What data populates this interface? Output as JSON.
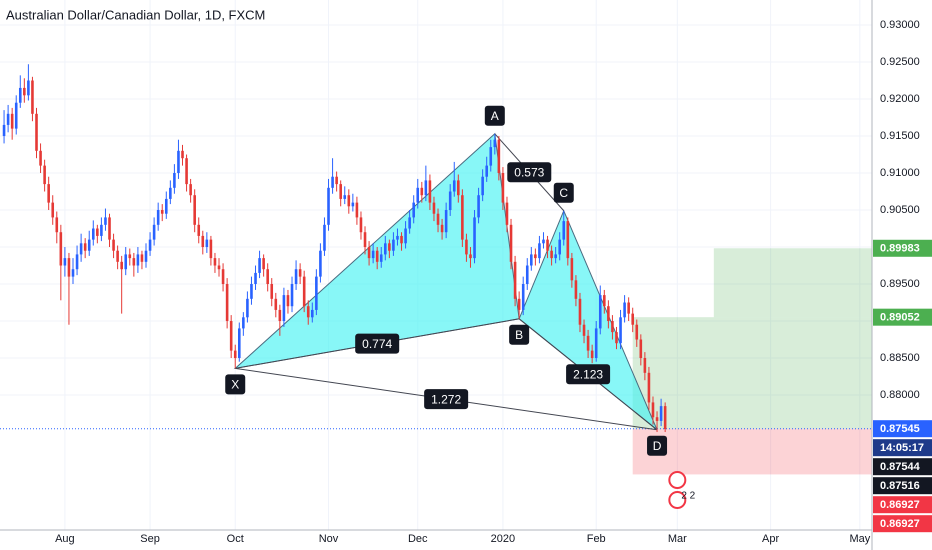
{
  "chart_data": {
    "type": "candlestick",
    "title": "Australian Dollar/Canadian Dollar, 1D, FXCM",
    "up_color": "#2962ff",
    "down_color": "#e53935",
    "grid": true,
    "xlim": [
      -1,
      214
    ],
    "ylim": [
      0.86176,
      0.93338
    ],
    "xticks": [
      {
        "value": 15,
        "label": "Aug"
      },
      {
        "value": 36,
        "label": "Sep"
      },
      {
        "value": 57,
        "label": "Oct"
      },
      {
        "value": 80,
        "label": "Nov"
      },
      {
        "value": 102,
        "label": "Dec"
      },
      {
        "value": 123,
        "label": "2020"
      },
      {
        "value": 146,
        "label": "Feb"
      },
      {
        "value": 166,
        "label": "Mar"
      },
      {
        "value": 189,
        "label": "Apr"
      },
      {
        "value": 211,
        "label": "May"
      }
    ],
    "yticks": [
      {
        "value": 0.93,
        "label": "0.93000"
      },
      {
        "value": 0.925,
        "label": "0.92500"
      },
      {
        "value": 0.92,
        "label": "0.92000"
      },
      {
        "value": 0.915,
        "label": "0.91500"
      },
      {
        "value": 0.91,
        "label": "0.91000"
      },
      {
        "value": 0.905,
        "label": "0.90500"
      },
      {
        "value": 0.9,
        "label": "0.90000"
      },
      {
        "value": 0.895,
        "label": "0.89500"
      },
      {
        "value": 0.89,
        "label": "0.89000"
      },
      {
        "value": 0.885,
        "label": "0.88500"
      },
      {
        "value": 0.88,
        "label": "0.88000"
      }
    ],
    "ohlc": [
      [
        0.915,
        0.9185,
        0.914,
        0.9165
      ],
      [
        0.9165,
        0.9192,
        0.9155,
        0.918
      ],
      [
        0.918,
        0.9188,
        0.9145,
        0.916
      ],
      [
        0.916,
        0.9205,
        0.9152,
        0.9195
      ],
      [
        0.9195,
        0.9232,
        0.9188,
        0.9215
      ],
      [
        0.9215,
        0.9228,
        0.9195,
        0.9205
      ],
      [
        0.9205,
        0.9247,
        0.9198,
        0.9225
      ],
      [
        0.9225,
        0.923,
        0.917,
        0.918
      ],
      [
        0.918,
        0.9188,
        0.912,
        0.913
      ],
      [
        0.913,
        0.914,
        0.91,
        0.911
      ],
      [
        0.911,
        0.9118,
        0.9075,
        0.9085
      ],
      [
        0.9085,
        0.9095,
        0.905,
        0.906
      ],
      [
        0.906,
        0.907,
        0.903,
        0.904
      ],
      [
        0.904,
        0.9048,
        0.9005,
        0.902
      ],
      [
        0.902,
        0.903,
        0.8928,
        0.8975
      ],
      [
        0.8975,
        0.9,
        0.896,
        0.8985
      ],
      [
        0.8985,
        0.8992,
        0.8895,
        0.896
      ],
      [
        0.896,
        0.8985,
        0.895,
        0.897
      ],
      [
        0.897,
        0.9002,
        0.8962,
        0.899
      ],
      [
        0.899,
        0.9018,
        0.898,
        0.9005
      ],
      [
        0.9005,
        0.9012,
        0.8985,
        0.8995
      ],
      [
        0.8995,
        0.9022,
        0.8988,
        0.901
      ],
      [
        0.901,
        0.9036,
        0.9002,
        0.9025
      ],
      [
        0.9025,
        0.903,
        0.9005,
        0.9015
      ],
      [
        0.9015,
        0.904,
        0.9008,
        0.903
      ],
      [
        0.903,
        0.9052,
        0.9022,
        0.904
      ],
      [
        0.904,
        0.9045,
        0.9,
        0.901
      ],
      [
        0.901,
        0.9018,
        0.8985,
        0.8995
      ],
      [
        0.8995,
        0.9002,
        0.897,
        0.898
      ],
      [
        0.898,
        0.8988,
        0.891,
        0.897
      ],
      [
        0.897,
        0.9,
        0.8962,
        0.899
      ],
      [
        0.899,
        0.8998,
        0.8975,
        0.8985
      ],
      [
        0.8985,
        0.8992,
        0.896,
        0.8975
      ],
      [
        0.8975,
        0.9,
        0.8965,
        0.899
      ],
      [
        0.899,
        0.8995,
        0.897,
        0.898
      ],
      [
        0.898,
        0.9005,
        0.8972,
        0.8995
      ],
      [
        0.8995,
        0.902,
        0.8988,
        0.901
      ],
      [
        0.901,
        0.904,
        0.9002,
        0.903
      ],
      [
        0.903,
        0.906,
        0.9022,
        0.905
      ],
      [
        0.905,
        0.9058,
        0.9035,
        0.9045
      ],
      [
        0.9045,
        0.9075,
        0.9038,
        0.9065
      ],
      [
        0.9065,
        0.909,
        0.9058,
        0.908
      ],
      [
        0.908,
        0.9112,
        0.9072,
        0.91
      ],
      [
        0.91,
        0.9145,
        0.9092,
        0.913
      ],
      [
        0.913,
        0.9138,
        0.911,
        0.912
      ],
      [
        0.912,
        0.9125,
        0.9075,
        0.9085
      ],
      [
        0.9085,
        0.9092,
        0.906,
        0.907
      ],
      [
        0.907,
        0.9078,
        0.902,
        0.903
      ],
      [
        0.903,
        0.904,
        0.9005,
        0.9015
      ],
      [
        0.9015,
        0.9022,
        0.899,
        0.9
      ],
      [
        0.9,
        0.902,
        0.8992,
        0.901
      ],
      [
        0.901,
        0.9015,
        0.8975,
        0.8985
      ],
      [
        0.8985,
        0.8992,
        0.8965,
        0.8975
      ],
      [
        0.8975,
        0.8985,
        0.896,
        0.897
      ],
      [
        0.897,
        0.8978,
        0.894,
        0.895
      ],
      [
        0.895,
        0.8958,
        0.889,
        0.89
      ],
      [
        0.89,
        0.8908,
        0.885,
        0.886
      ],
      [
        0.886,
        0.8868,
        0.8836,
        0.885
      ],
      [
        0.885,
        0.8898,
        0.8845,
        0.889
      ],
      [
        0.889,
        0.8912,
        0.888,
        0.8905
      ],
      [
        0.8905,
        0.894,
        0.8898,
        0.893
      ],
      [
        0.893,
        0.896,
        0.8922,
        0.895
      ],
      [
        0.895,
        0.8975,
        0.8942,
        0.8965
      ],
      [
        0.8965,
        0.8995,
        0.8958,
        0.8985
      ],
      [
        0.8985,
        0.899,
        0.896,
        0.897
      ],
      [
        0.897,
        0.8978,
        0.894,
        0.895
      ],
      [
        0.895,
        0.8958,
        0.892,
        0.893
      ],
      [
        0.893,
        0.8938,
        0.8905,
        0.8915
      ],
      [
        0.8915,
        0.8922,
        0.888,
        0.89
      ],
      [
        0.89,
        0.8945,
        0.8892,
        0.8935
      ],
      [
        0.8935,
        0.8942,
        0.891,
        0.892
      ],
      [
        0.892,
        0.896,
        0.8912,
        0.895
      ],
      [
        0.895,
        0.8982,
        0.8942,
        0.897
      ],
      [
        0.897,
        0.8978,
        0.895,
        0.896
      ],
      [
        0.896,
        0.8968,
        0.8912,
        0.892
      ],
      [
        0.892,
        0.8928,
        0.8895,
        0.8905
      ],
      [
        0.8905,
        0.8925,
        0.8898,
        0.8915
      ],
      [
        0.8915,
        0.897,
        0.8908,
        0.896
      ],
      [
        0.896,
        0.9005,
        0.8952,
        0.8995
      ],
      [
        0.8995,
        0.904,
        0.8988,
        0.903
      ],
      [
        0.903,
        0.9092,
        0.9022,
        0.908
      ],
      [
        0.908,
        0.912,
        0.9072,
        0.9095
      ],
      [
        0.9095,
        0.9102,
        0.9075,
        0.9085
      ],
      [
        0.9085,
        0.909,
        0.9055,
        0.9065
      ],
      [
        0.9065,
        0.9082,
        0.9058,
        0.907
      ],
      [
        0.907,
        0.9078,
        0.9045,
        0.9055
      ],
      [
        0.9055,
        0.9072,
        0.9048,
        0.906
      ],
      [
        0.906,
        0.9068,
        0.903,
        0.904
      ],
      [
        0.904,
        0.9048,
        0.901,
        0.902
      ],
      [
        0.902,
        0.9028,
        0.899,
        0.9
      ],
      [
        0.9,
        0.9008,
        0.8975,
        0.8985
      ],
      [
        0.8985,
        0.9005,
        0.8978,
        0.8995
      ],
      [
        0.8995,
        0.9,
        0.897,
        0.898
      ],
      [
        0.898,
        0.9,
        0.8972,
        0.899
      ],
      [
        0.899,
        0.9015,
        0.8982,
        0.9005
      ],
      [
        0.9005,
        0.901,
        0.8985,
        0.8995
      ],
      [
        0.8995,
        0.902,
        0.8988,
        0.901
      ],
      [
        0.901,
        0.9025,
        0.9002,
        0.9015
      ],
      [
        0.9015,
        0.902,
        0.8995,
        0.9005
      ],
      [
        0.9005,
        0.9035,
        0.8998,
        0.9025
      ],
      [
        0.9025,
        0.905,
        0.9018,
        0.904
      ],
      [
        0.904,
        0.907,
        0.9032,
        0.906
      ],
      [
        0.906,
        0.9092,
        0.9052,
        0.908
      ],
      [
        0.908,
        0.9088,
        0.906,
        0.907
      ],
      [
        0.907,
        0.911,
        0.9062,
        0.909
      ],
      [
        0.909,
        0.9098,
        0.905,
        0.906
      ],
      [
        0.906,
        0.9068,
        0.9035,
        0.9045
      ],
      [
        0.9045,
        0.9052,
        0.902,
        0.903
      ],
      [
        0.903,
        0.9038,
        0.901,
        0.902
      ],
      [
        0.902,
        0.906,
        0.9012,
        0.905
      ],
      [
        0.905,
        0.9085,
        0.9042,
        0.9075
      ],
      [
        0.9075,
        0.9115,
        0.9068,
        0.909
      ],
      [
        0.909,
        0.9098,
        0.906,
        0.907
      ],
      [
        0.907,
        0.9078,
        0.9,
        0.901
      ],
      [
        0.901,
        0.9018,
        0.898,
        0.899
      ],
      [
        0.899,
        0.9,
        0.8972,
        0.8985
      ],
      [
        0.8985,
        0.905,
        0.8978,
        0.904
      ],
      [
        0.904,
        0.908,
        0.9032,
        0.907
      ],
      [
        0.907,
        0.9105,
        0.9062,
        0.9095
      ],
      [
        0.9095,
        0.9122,
        0.9088,
        0.911
      ],
      [
        0.911,
        0.9145,
        0.9102,
        0.9135
      ],
      [
        0.9135,
        0.9153,
        0.9125,
        0.9145
      ],
      [
        0.9145,
        0.915,
        0.909,
        0.91
      ],
      [
        0.91,
        0.9108,
        0.905,
        0.906
      ],
      [
        0.906,
        0.9068,
        0.902,
        0.903
      ],
      [
        0.903,
        0.9038,
        0.897,
        0.898
      ],
      [
        0.898,
        0.8988,
        0.892,
        0.893
      ],
      [
        0.893,
        0.894,
        0.8903,
        0.8915
      ],
      [
        0.8915,
        0.896,
        0.8908,
        0.895
      ],
      [
        0.895,
        0.8985,
        0.8942,
        0.8975
      ],
      [
        0.8975,
        0.9,
        0.8968,
        0.899
      ],
      [
        0.899,
        0.8998,
        0.8975,
        0.8985
      ],
      [
        0.8985,
        0.9015,
        0.8978,
        0.9005
      ],
      [
        0.9005,
        0.902,
        0.8998,
        0.901
      ],
      [
        0.901,
        0.9015,
        0.8985,
        0.8995
      ],
      [
        0.8995,
        0.9002,
        0.8975,
        0.8985
      ],
      [
        0.8985,
        0.9,
        0.8978,
        0.899
      ],
      [
        0.899,
        0.902,
        0.8982,
        0.901
      ],
      [
        0.901,
        0.9049,
        0.9002,
        0.9035
      ],
      [
        0.9035,
        0.904,
        0.8975,
        0.8985
      ],
      [
        0.8985,
        0.8992,
        0.8945,
        0.8955
      ],
      [
        0.8955,
        0.8962,
        0.892,
        0.893
      ],
      [
        0.893,
        0.8938,
        0.8885,
        0.8895
      ],
      [
        0.8895,
        0.8902,
        0.887,
        0.888
      ],
      [
        0.888,
        0.8888,
        0.885,
        0.886
      ],
      [
        0.886,
        0.8868,
        0.8843,
        0.885
      ],
      [
        0.885,
        0.89,
        0.8845,
        0.889
      ],
      [
        0.889,
        0.8948,
        0.8882,
        0.8935
      ],
      [
        0.8935,
        0.8942,
        0.891,
        0.892
      ],
      [
        0.892,
        0.8928,
        0.889,
        0.89
      ],
      [
        0.89,
        0.8908,
        0.8875,
        0.8885
      ],
      [
        0.8885,
        0.8892,
        0.8862,
        0.887
      ],
      [
        0.887,
        0.8915,
        0.8862,
        0.8905
      ],
      [
        0.8905,
        0.8935,
        0.8898,
        0.8925
      ],
      [
        0.8925,
        0.8932,
        0.89,
        0.891
      ],
      [
        0.891,
        0.8918,
        0.8885,
        0.8895
      ],
      [
        0.8895,
        0.8902,
        0.8865,
        0.8875
      ],
      [
        0.8875,
        0.8882,
        0.884,
        0.885
      ],
      [
        0.885,
        0.8858,
        0.882,
        0.883
      ],
      [
        0.883,
        0.8838,
        0.878,
        0.879
      ],
      [
        0.879,
        0.8798,
        0.876,
        0.877
      ],
      [
        0.877,
        0.8778,
        0.875,
        0.8765
      ],
      [
        0.8765,
        0.8795,
        0.8758,
        0.8785
      ],
      [
        0.8785,
        0.879,
        0.875,
        0.8754
      ]
    ],
    "pattern": {
      "points": [
        {
          "label": "X",
          "index": 57,
          "price": 0.8836
        },
        {
          "label": "A",
          "index": 121,
          "price": 0.9153
        },
        {
          "label": "B",
          "index": 127,
          "price": 0.8903
        },
        {
          "label": "C",
          "index": 138,
          "price": 0.9049
        },
        {
          "label": "D",
          "index": 161,
          "price": 0.8753
        }
      ],
      "ratios": {
        "XB": 0.774,
        "AC": 0.573,
        "BD": 2.123,
        "XD": 1.272
      }
    },
    "position": {
      "start": 155,
      "step": 175,
      "entry": 0.87545,
      "targets": [
        0.89052,
        0.89983
      ],
      "stop": 0.86927
    },
    "last_price": 0.87545,
    "countdown": "14:05:17",
    "event_badge": "2 2",
    "price_labels": [
      {
        "value": 0.89983,
        "color": "#4caf50"
      },
      {
        "value": 0.89052,
        "color": "#4caf50"
      },
      {
        "value": 0.87545,
        "color": "#2962ff"
      },
      {
        "value": 0.87544,
        "color": "#131722"
      },
      {
        "value": 0.87516,
        "color": "#131722"
      },
      {
        "value": 0.86927,
        "color": "#f23645"
      },
      {
        "value": 0.86927,
        "color": "#f23645"
      }
    ]
  }
}
